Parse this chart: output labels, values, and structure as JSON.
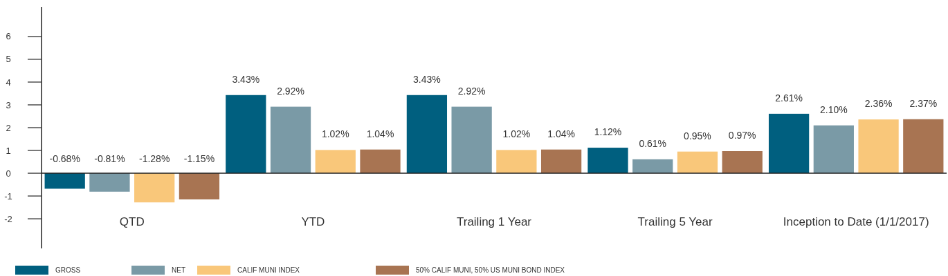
{
  "chart_data": {
    "type": "bar",
    "categories": [
      "QTD",
      "YTD",
      "Trailing 1 Year",
      "Trailing 5 Year",
      "Inception to Date (1/1/2017)"
    ],
    "series": [
      {
        "name": "GROSS",
        "color": "#005f7f",
        "values": [
          -0.68,
          3.43,
          3.43,
          1.12,
          2.61
        ],
        "value_labels": [
          "-0.68%",
          "3.43%",
          "3.43%",
          "1.12%",
          "2.61%"
        ]
      },
      {
        "name": "NET",
        "color": "#7a9aa6",
        "values": [
          -0.81,
          2.92,
          2.92,
          0.61,
          2.1
        ],
        "value_labels": [
          "-0.81%",
          "2.92%",
          "2.92%",
          "0.61%",
          "2.10%"
        ]
      },
      {
        "name": "CALIF MUNI INDEX",
        "color": "#f9c77a",
        "values": [
          -1.28,
          1.02,
          1.02,
          0.95,
          2.36
        ],
        "value_labels": [
          "-1.28%",
          "1.02%",
          "1.02%",
          "0.95%",
          "2.36%"
        ]
      },
      {
        "name": "50% CALIF MUNI, 50% US MUNI BOND INDEX",
        "color": "#a87452",
        "values": [
          -1.15,
          1.04,
          1.04,
          0.97,
          2.37
        ],
        "value_labels": [
          "-1.15%",
          "1.04%",
          "1.04%",
          "0.97%",
          "2.37%"
        ]
      }
    ],
    "ylim": [
      -3.3,
      7.3
    ],
    "yticks": [
      -2,
      -1,
      0,
      1,
      2,
      3,
      4,
      5,
      6
    ],
    "legend": "bottom"
  }
}
